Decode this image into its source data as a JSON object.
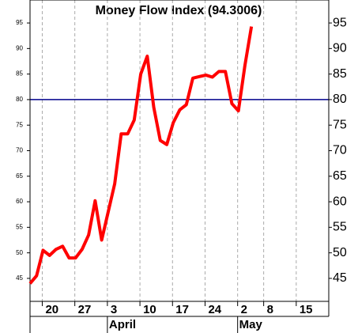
{
  "chart_data": {
    "type": "line",
    "title": "Money Flow Index (94.3006)",
    "categories": [
      null,
      null,
      "20",
      null,
      null,
      null,
      null,
      "27",
      null,
      null,
      null,
      null,
      "3",
      null,
      null,
      null,
      null,
      "10",
      null,
      null,
      null,
      null,
      "17",
      null,
      null,
      null,
      null,
      "24",
      null,
      null,
      null,
      null,
      "2",
      null,
      null,
      null,
      "8",
      null,
      null,
      null,
      null,
      "15",
      null,
      null,
      null,
      null
    ],
    "months": [
      null,
      null,
      null,
      null,
      null,
      null,
      null,
      null,
      null,
      null,
      null,
      null,
      "April",
      null,
      null,
      null,
      null,
      null,
      null,
      null,
      null,
      null,
      null,
      null,
      null,
      null,
      null,
      null,
      null,
      null,
      null,
      null,
      "May",
      null,
      null,
      null,
      null,
      null,
      null,
      null,
      null,
      null,
      null,
      null,
      null,
      null
    ],
    "series": [
      {
        "name": "Money Flow Index",
        "color": "#ff0000",
        "values": [
          44,
          45.5,
          50.5,
          49.5,
          50.7,
          51.3,
          49,
          49,
          50.7,
          53.5,
          60.2,
          52.5,
          58,
          63.5,
          73.3,
          73.3,
          76,
          85,
          88.5,
          78.5,
          72,
          71.2,
          75.5,
          78,
          79,
          84.2,
          84.5,
          84.8,
          84.4,
          85.5,
          85.5,
          79.2,
          77.8,
          86.7,
          94.3,
          null,
          null,
          null,
          null,
          null,
          null,
          null,
          null,
          null,
          null,
          null
        ]
      }
    ],
    "reference_line": {
      "value": 80,
      "color": "#00008b"
    },
    "ylim": [
      40.5,
      99.5
    ],
    "yticks": [
      45,
      50,
      55,
      60,
      65,
      70,
      75,
      80,
      85,
      90,
      95
    ],
    "grid": true
  }
}
